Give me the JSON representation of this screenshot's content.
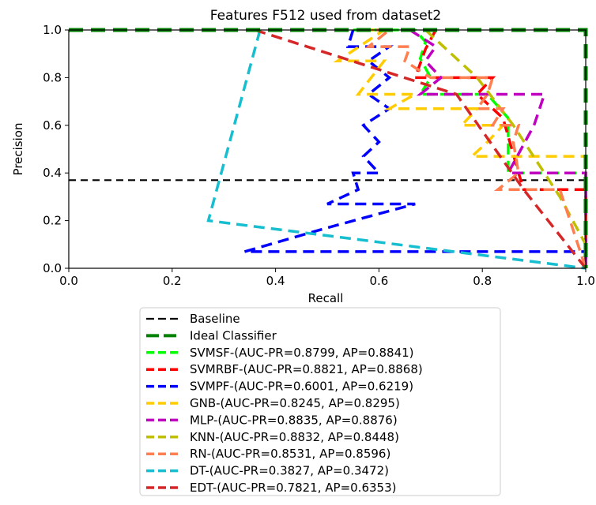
{
  "chart_data": {
    "type": "line",
    "title": "Features F512 used from dataset2",
    "xlabel": "Recall",
    "ylabel": "Precision",
    "xlim": [
      0.0,
      1.0
    ],
    "ylim": [
      0.0,
      1.0
    ],
    "xticks": [
      "0.0",
      "0.2",
      "0.4",
      "0.6",
      "0.8",
      "1.0"
    ],
    "yticks": [
      "0.0",
      "0.2",
      "0.4",
      "0.6",
      "0.8",
      "1.0"
    ],
    "grid": false,
    "legend_position": "below-center",
    "series": [
      {
        "name": "Baseline",
        "color": "#000000",
        "width": 2.2,
        "dash": "9 6",
        "points": [
          [
            0,
            0.37
          ],
          [
            1.0,
            0.37
          ]
        ]
      },
      {
        "name": "Ideal Classifier",
        "color": "#008000",
        "width": 5,
        "dash": "18 10",
        "points": [
          [
            0,
            1.0
          ],
          [
            1.0,
            1.0
          ],
          [
            1.0,
            0.0
          ]
        ]
      },
      {
        "name": "SVMSF-(AUC-PR=0.8799, AP=0.8841)",
        "color": "#00ff00",
        "width": 3.5,
        "dash": "14 8",
        "points": [
          [
            0.55,
            1.0
          ],
          [
            0.67,
            1.0
          ],
          [
            0.69,
            0.95
          ],
          [
            0.68,
            0.88
          ],
          [
            0.7,
            0.8
          ],
          [
            0.68,
            0.73
          ],
          [
            0.81,
            0.73
          ],
          [
            0.85,
            0.63
          ],
          [
            0.85,
            0.4
          ],
          [
            1.0,
            0.4
          ],
          [
            1.0,
            0.0
          ]
        ]
      },
      {
        "name": "SVMRBF-(AUC-PR=0.8821, AP=0.8868)",
        "color": "#ff0000",
        "width": 3.5,
        "dash": "14 8",
        "points": [
          [
            0.71,
            1.0
          ],
          [
            0.69,
            0.92
          ],
          [
            0.67,
            0.8
          ],
          [
            0.82,
            0.8
          ],
          [
            0.79,
            0.73
          ],
          [
            0.84,
            0.63
          ],
          [
            0.87,
            0.4
          ],
          [
            0.88,
            0.33
          ],
          [
            1.0,
            0.33
          ],
          [
            1.0,
            0.0
          ]
        ]
      },
      {
        "name": "SVMPF-(AUC-PR=0.6001, AP=0.6219)",
        "color": "#0000ff",
        "width": 3.5,
        "dash": "14 8",
        "points": [
          [
            0.55,
            1.0
          ],
          [
            0.54,
            0.93
          ],
          [
            0.62,
            0.93
          ],
          [
            0.58,
            0.87
          ],
          [
            0.62,
            0.8
          ],
          [
            0.58,
            0.73
          ],
          [
            0.62,
            0.67
          ],
          [
            0.57,
            0.6
          ],
          [
            0.6,
            0.53
          ],
          [
            0.57,
            0.47
          ],
          [
            0.6,
            0.4
          ],
          [
            0.55,
            0.4
          ],
          [
            0.56,
            0.33
          ],
          [
            0.5,
            0.27
          ],
          [
            0.67,
            0.27
          ],
          [
            0.5,
            0.17
          ],
          [
            0.34,
            0.07
          ],
          [
            1.0,
            0.07
          ],
          [
            1.0,
            0.0
          ]
        ]
      },
      {
        "name": "GNB-(AUC-PR=0.8245, AP=0.8295)",
        "color": "#ffcc00",
        "width": 3.5,
        "dash": "14 8",
        "points": [
          [
            0.57,
            1.0
          ],
          [
            0.61,
            1.0
          ],
          [
            0.52,
            0.87
          ],
          [
            0.61,
            0.87
          ],
          [
            0.56,
            0.73
          ],
          [
            0.67,
            0.73
          ],
          [
            0.62,
            0.67
          ],
          [
            0.79,
            0.67
          ],
          [
            0.76,
            0.6
          ],
          [
            0.84,
            0.6
          ],
          [
            0.81,
            0.53
          ],
          [
            0.78,
            0.47
          ],
          [
            1.0,
            0.47
          ]
        ]
      },
      {
        "name": "MLP-(AUC-PR=0.8835, AP=0.8876)",
        "color": "#bf00bf",
        "width": 3.5,
        "dash": "14 8",
        "points": [
          [
            0.66,
            1.0
          ],
          [
            0.71,
            0.93
          ],
          [
            0.69,
            0.87
          ],
          [
            0.72,
            0.8
          ],
          [
            0.68,
            0.73
          ],
          [
            0.92,
            0.73
          ],
          [
            0.9,
            0.6
          ],
          [
            0.85,
            0.4
          ],
          [
            1.0,
            0.4
          ],
          [
            1.0,
            0.0
          ]
        ]
      },
      {
        "name": "KNN-(AUC-PR=0.8832, AP=0.8448)",
        "color": "#bfbf00",
        "width": 3.5,
        "dash": "14 8",
        "points": [
          [
            0.69,
            1.0
          ],
          [
            0.79,
            0.8
          ],
          [
            0.86,
            0.6
          ],
          [
            0.95,
            0.3
          ],
          [
            1.0,
            0.1
          ]
        ]
      },
      {
        "name": "RN-(AUC-PR=0.8531, AP=0.8596)",
        "color": "#ff7f50",
        "width": 3.5,
        "dash": "14 8",
        "points": [
          [
            0.56,
            1.0
          ],
          [
            0.62,
            1.0
          ],
          [
            0.58,
            0.93
          ],
          [
            0.66,
            0.93
          ],
          [
            0.65,
            0.87
          ],
          [
            0.7,
            0.8
          ],
          [
            0.82,
            0.8
          ],
          [
            0.81,
            0.73
          ],
          [
            0.79,
            0.67
          ],
          [
            0.84,
            0.67
          ],
          [
            0.82,
            0.6
          ],
          [
            0.87,
            0.6
          ],
          [
            0.86,
            0.53
          ],
          [
            0.87,
            0.4
          ],
          [
            0.83,
            0.33
          ],
          [
            0.95,
            0.33
          ],
          [
            1.0,
            0.0
          ]
        ]
      },
      {
        "name": "DT-(AUC-PR=0.3827, AP=0.3472)",
        "color": "#17becf",
        "width": 3.5,
        "dash": "14 8",
        "points": [
          [
            0.37,
            1.0
          ],
          [
            0.27,
            0.2
          ],
          [
            1.0,
            0.0
          ]
        ]
      },
      {
        "name": "EDT-(AUC-PR=0.7821, AP=0.6353)",
        "color": "#d62728",
        "width": 3.5,
        "dash": "14 8",
        "points": [
          [
            0.36,
            1.0
          ],
          [
            0.75,
            0.73
          ],
          [
            0.88,
            0.33
          ],
          [
            1.0,
            0.0
          ]
        ]
      }
    ]
  }
}
